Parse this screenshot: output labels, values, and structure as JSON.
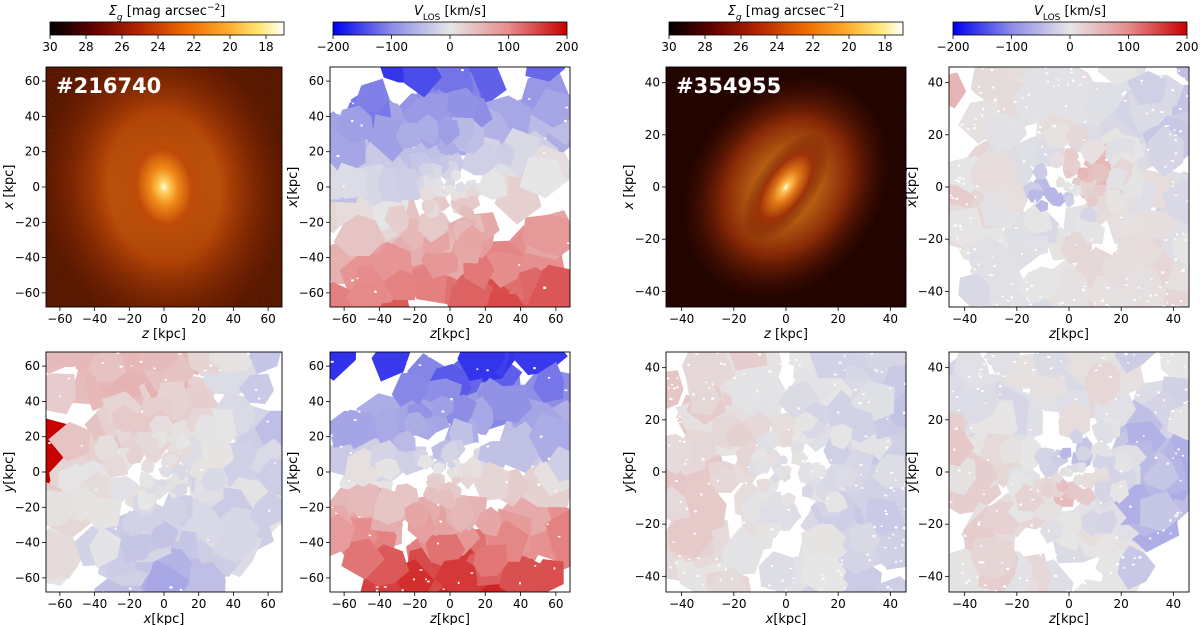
{
  "colorbars": {
    "sb_label": "Σ",
    "sb_label_sub": "g",
    "sb_label_rest": " [mag arcsec",
    "sb_label_exp": "−2",
    "sb_label_close": "]",
    "sb_ticks": [
      "30",
      "28",
      "26",
      "24",
      "22",
      "20",
      "18"
    ],
    "sb_range": [
      30,
      17
    ],
    "v_label": "V",
    "v_label_sub": "LOS",
    "v_label_rest": " [km/s]",
    "v_ticks": [
      "−200",
      "−100",
      "0",
      "100",
      "200"
    ],
    "v_range": [
      -200,
      200
    ],
    "sb_colors": [
      "#000000",
      "#5a0000",
      "#b32400",
      "#ee6a00",
      "#ffac2a",
      "#ffe87a",
      "#ffffff"
    ],
    "v_colors": [
      "#0000f0",
      "#8c8ce6",
      "#e6e6e6",
      "#e68c8c",
      "#c80000"
    ]
  },
  "chart_data": [
    {
      "type": "heatmap",
      "id": "p216740-sb-xz",
      "label": "#216740",
      "xlabel": "z [kpc]",
      "ylabel": "x [kpc]",
      "xlim": [
        -68,
        68
      ],
      "ylim": [
        -68,
        68
      ],
      "xticks": [
        "−60",
        "−40",
        "−20",
        "0",
        "20",
        "40",
        "60"
      ],
      "yticks": [
        "−60",
        "−40",
        "−20",
        "0",
        "20",
        "40",
        "60"
      ],
      "tick_values": [
        -60,
        -40,
        -20,
        0,
        20,
        40,
        60
      ]
    },
    {
      "type": "heatmap",
      "id": "p216740-v-xz",
      "label": "",
      "xlabel": "z[kpc]",
      "ylabel": "x[kpc]",
      "xlim": [
        -68,
        68
      ],
      "ylim": [
        -68,
        68
      ],
      "xticks": [
        "−60",
        "−40",
        "−20",
        "0",
        "20",
        "40",
        "60"
      ],
      "yticks": [
        "−60",
        "−40",
        "−20",
        "0",
        "20",
        "40",
        "60"
      ],
      "tick_values": [
        -60,
        -40,
        -20,
        0,
        20,
        40,
        60
      ]
    },
    {
      "type": "heatmap",
      "id": "p354955-sb-xz",
      "label": "#354955",
      "xlabel": "z [kpc]",
      "ylabel": "x [kpc]",
      "xlim": [
        -46,
        46
      ],
      "ylim": [
        -46,
        46
      ],
      "xticks": [
        "−40",
        "−20",
        "0",
        "20",
        "40"
      ],
      "yticks": [
        "−40",
        "−20",
        "0",
        "20",
        "40"
      ],
      "tick_values": [
        -40,
        -20,
        0,
        20,
        40
      ]
    },
    {
      "type": "heatmap",
      "id": "p354955-v-xz",
      "label": "",
      "xlabel": "z[kpc]",
      "ylabel": "x[kpc]",
      "xlim": [
        -46,
        46
      ],
      "ylim": [
        -46,
        46
      ],
      "xticks": [
        "−40",
        "−20",
        "0",
        "20",
        "40"
      ],
      "yticks": [
        "−40",
        "−20",
        "0",
        "20",
        "40"
      ],
      "tick_values": [
        -40,
        -20,
        0,
        20,
        40
      ]
    },
    {
      "type": "heatmap",
      "id": "p216740-v-yx",
      "label": "",
      "xlabel": "x[kpc]",
      "ylabel": "y[kpc]",
      "xlim": [
        -68,
        68
      ],
      "ylim": [
        -68,
        68
      ],
      "xticks": [
        "−60",
        "−40",
        "−20",
        "0",
        "20",
        "40",
        "60"
      ],
      "yticks": [
        "−60",
        "−40",
        "−20",
        "0",
        "20",
        "40",
        "60"
      ],
      "tick_values": [
        -60,
        -40,
        -20,
        0,
        20,
        40,
        60
      ]
    },
    {
      "type": "heatmap",
      "id": "p216740-v-yz",
      "label": "",
      "xlabel": "z[kpc]",
      "ylabel": "y[kpc]",
      "xlim": [
        -68,
        68
      ],
      "ylim": [
        -68,
        68
      ],
      "xticks": [
        "−60",
        "−40",
        "−20",
        "0",
        "20",
        "40",
        "60"
      ],
      "yticks": [
        "−60",
        "−40",
        "−20",
        "0",
        "20",
        "40",
        "60"
      ],
      "tick_values": [
        -60,
        -40,
        -20,
        0,
        20,
        40,
        60
      ]
    },
    {
      "type": "heatmap",
      "id": "p354955-v-yx",
      "label": "",
      "xlabel": "x[kpc]",
      "ylabel": "y[kpc]",
      "xlim": [
        -46,
        46
      ],
      "ylim": [
        -46,
        46
      ],
      "xticks": [
        "−40",
        "−20",
        "0",
        "20",
        "40"
      ],
      "yticks": [
        "−40",
        "−20",
        "0",
        "20",
        "40"
      ],
      "tick_values": [
        -40,
        -20,
        0,
        20,
        40
      ]
    },
    {
      "type": "heatmap",
      "id": "p354955-v-yz",
      "label": "",
      "xlabel": "z[kpc]",
      "ylabel": "y[kpc]",
      "xlim": [
        -46,
        46
      ],
      "ylim": [
        -46,
        46
      ],
      "xticks": [
        "−40",
        "−20",
        "0",
        "20",
        "40"
      ],
      "yticks": [
        "−40",
        "−20",
        "0",
        "20",
        "40"
      ],
      "tick_values": [
        -40,
        -20,
        0,
        20,
        40
      ]
    }
  ]
}
